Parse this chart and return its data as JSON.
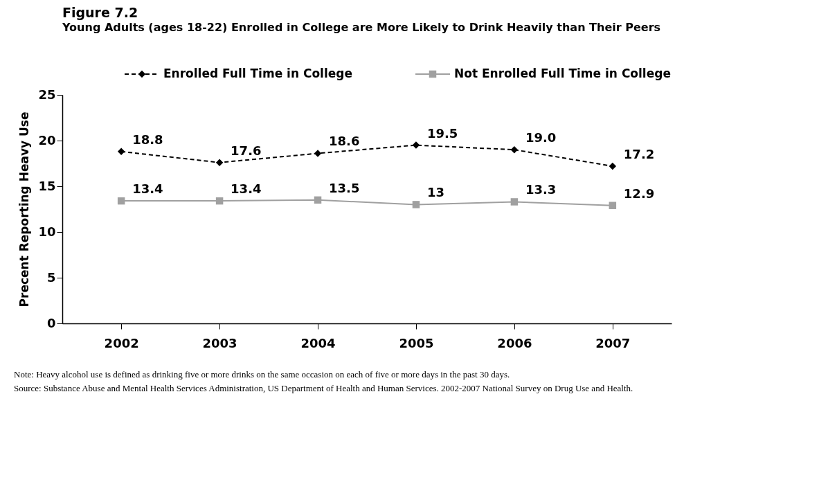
{
  "chart_data": {
    "type": "line",
    "title": "Figure 7.2",
    "subtitle": "Young Adults (ages 18-22) Enrolled in College are More Likely to Drink Heavily than Their Peers",
    "ylabel": "Precent Reporting Heavy Use",
    "categories": [
      "2002",
      "2003",
      "2004",
      "2005",
      "2006",
      "2007"
    ],
    "series": [
      {
        "name": "Enrolled Full Time in College",
        "color": "#000000",
        "marker": "diamond",
        "line_style": "dashed",
        "values": [
          18.8,
          17.6,
          18.6,
          19.5,
          19.0,
          17.2
        ],
        "value_labels": [
          "18.8",
          "17.6",
          "18.6",
          "19.5",
          "19.0",
          "17.2"
        ]
      },
      {
        "name": "Not Enrolled Full Time in College",
        "color": "#a0a0a0",
        "marker": "square",
        "line_style": "solid",
        "values": [
          13.4,
          13.4,
          13.5,
          13,
          13.3,
          12.9
        ],
        "value_labels": [
          "13.4",
          "13.4",
          "13.5",
          "13",
          "13.3",
          "12.9"
        ]
      }
    ],
    "ylim": [
      0,
      25
    ],
    "yticks": [
      0,
      5,
      10,
      15,
      20,
      25
    ],
    "grid": false,
    "legend": "top",
    "annotations": [
      "Note: Heavy alcohol use is defined as drinking five or more drinks on the same occasion on each of five or more days in the past 30 days.",
      "Source:  Substance Abuse and Mental Health Services Administration, US Department of Health and Human Services. 2002-2007 National Survey on Drug Use and Health."
    ]
  }
}
